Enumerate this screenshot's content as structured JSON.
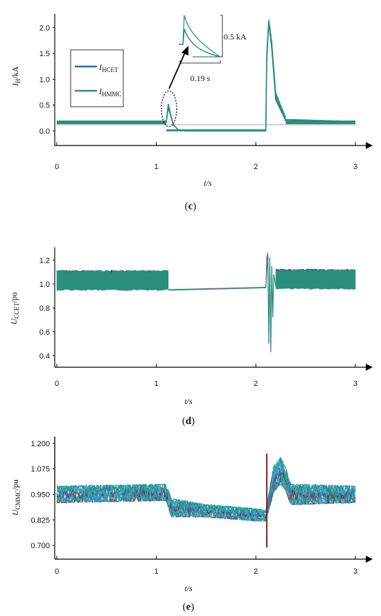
{
  "colors": {
    "teal": "#2a8f7c",
    "blue": "#1f6fb3",
    "gray": "#9a9a9a",
    "dark_red": "#8b1a1a",
    "cyan": "#2ab0c8",
    "purple": "#7a5aa8"
  },
  "chart_data": [
    {
      "id": "c",
      "caption": "(c)",
      "type": "line",
      "ylabel": "IH/kA",
      "ylabel_main": "I",
      "ylabel_sub": "H",
      "ylabel_suffix": "/kA",
      "xlabel": "t/s",
      "xlim": [
        0,
        3
      ],
      "ylim": [
        -0.15,
        2.2
      ],
      "xticks": [
        "0",
        "1",
        "2",
        "3"
      ],
      "yticks": [
        "0.0",
        "0.5",
        "1.0",
        "1.5",
        "2.0"
      ],
      "legend": {
        "position": "left",
        "items": [
          {
            "main": "I",
            "sub": "HCET",
            "color": "#1f6fb3"
          },
          {
            "main": "I",
            "sub": "HMMC",
            "color": "#2a8f7c"
          }
        ]
      },
      "series": [
        {
          "name": "IHCET",
          "x": [
            0,
            1.1,
            1.12,
            1.14,
            1.17,
            1.22,
            1.28,
            2.1,
            2.11,
            2.13,
            2.16,
            2.2,
            2.3,
            3
          ],
          "values": [
            0.17,
            0.17,
            0.45,
            0.32,
            0.12,
            0.02,
            0.0,
            0.0,
            1.4,
            2.1,
            1.6,
            0.6,
            0.2,
            0.18
          ]
        },
        {
          "name": "IHMMC",
          "x": [
            0,
            1.1,
            1.12,
            1.14,
            1.17,
            1.22,
            1.28,
            2.1,
            2.11,
            2.13,
            2.16,
            2.2,
            2.3,
            3
          ],
          "values": [
            0.17,
            0.17,
            0.52,
            0.35,
            0.12,
            0.02,
            0.0,
            0.0,
            1.5,
            2.15,
            1.7,
            0.7,
            0.22,
            0.18
          ]
        }
      ],
      "annotations": {
        "amplitude": "0.5 kA",
        "duration": "0.19 s"
      }
    },
    {
      "id": "d",
      "caption": "(d)",
      "type": "line",
      "ylabel": "UCCET/pu",
      "ylabel_main": "U",
      "ylabel_sub": "CCET",
      "ylabel_suffix": "/pu",
      "xlabel": "t/s",
      "xlim": [
        0,
        3
      ],
      "ylim": [
        0.35,
        1.3
      ],
      "xticks": [
        "0",
        "1",
        "2",
        "3"
      ],
      "yticks": [
        "0.4",
        "0.6",
        "0.8",
        "1.0",
        "1.2"
      ],
      "band_segments": [
        {
          "x": [
            0,
            1.12
          ],
          "low": 0.95,
          "high": 1.11
        },
        {
          "x": [
            2.2,
            3
          ],
          "low": 0.96,
          "high": 1.12
        }
      ],
      "flat_segment": {
        "x": [
          1.12,
          2.1
        ],
        "y0": 0.95,
        "y1": 0.97
      },
      "transient": {
        "x": [
          2.1,
          2.12,
          2.13,
          2.14,
          2.15,
          2.16,
          2.17,
          2.18,
          2.2
        ],
        "values": [
          0.97,
          1.26,
          0.5,
          1.22,
          0.43,
          1.15,
          0.72,
          1.08,
          0.98
        ]
      }
    },
    {
      "id": "e",
      "caption": "(e)",
      "type": "line",
      "ylabel": "UCMMC/pu",
      "ylabel_main": "U",
      "ylabel_sub": "CMMC",
      "ylabel_suffix": "/pu",
      "xlabel": "t/s",
      "xlim": [
        0,
        3
      ],
      "ylim": [
        0.67,
        1.22
      ],
      "xticks": [
        "0",
        "1",
        "2",
        "3"
      ],
      "yticks": [
        "0.700",
        "0.825",
        "0.950",
        "1.075",
        "1.200"
      ],
      "band_upper": {
        "x": [
          0,
          1.1,
          1.15,
          1.5,
          2.0,
          2.1,
          2.18,
          2.25,
          2.3,
          2.35,
          3
        ],
        "values": [
          0.99,
          1.0,
          0.93,
          0.9,
          0.88,
          0.87,
          1.09,
          1.13,
          1.08,
          1.0,
          0.99
        ]
      },
      "band_lower": {
        "x": [
          0,
          1.1,
          1.15,
          1.5,
          2.0,
          2.1,
          2.18,
          2.25,
          2.3,
          2.35,
          3
        ],
        "values": [
          0.91,
          0.92,
          0.84,
          0.84,
          0.82,
          0.82,
          0.96,
          1.0,
          0.97,
          0.9,
          0.91
        ]
      },
      "spike": {
        "x": 2.11,
        "top": 1.15,
        "bottom": 0.69
      }
    }
  ]
}
